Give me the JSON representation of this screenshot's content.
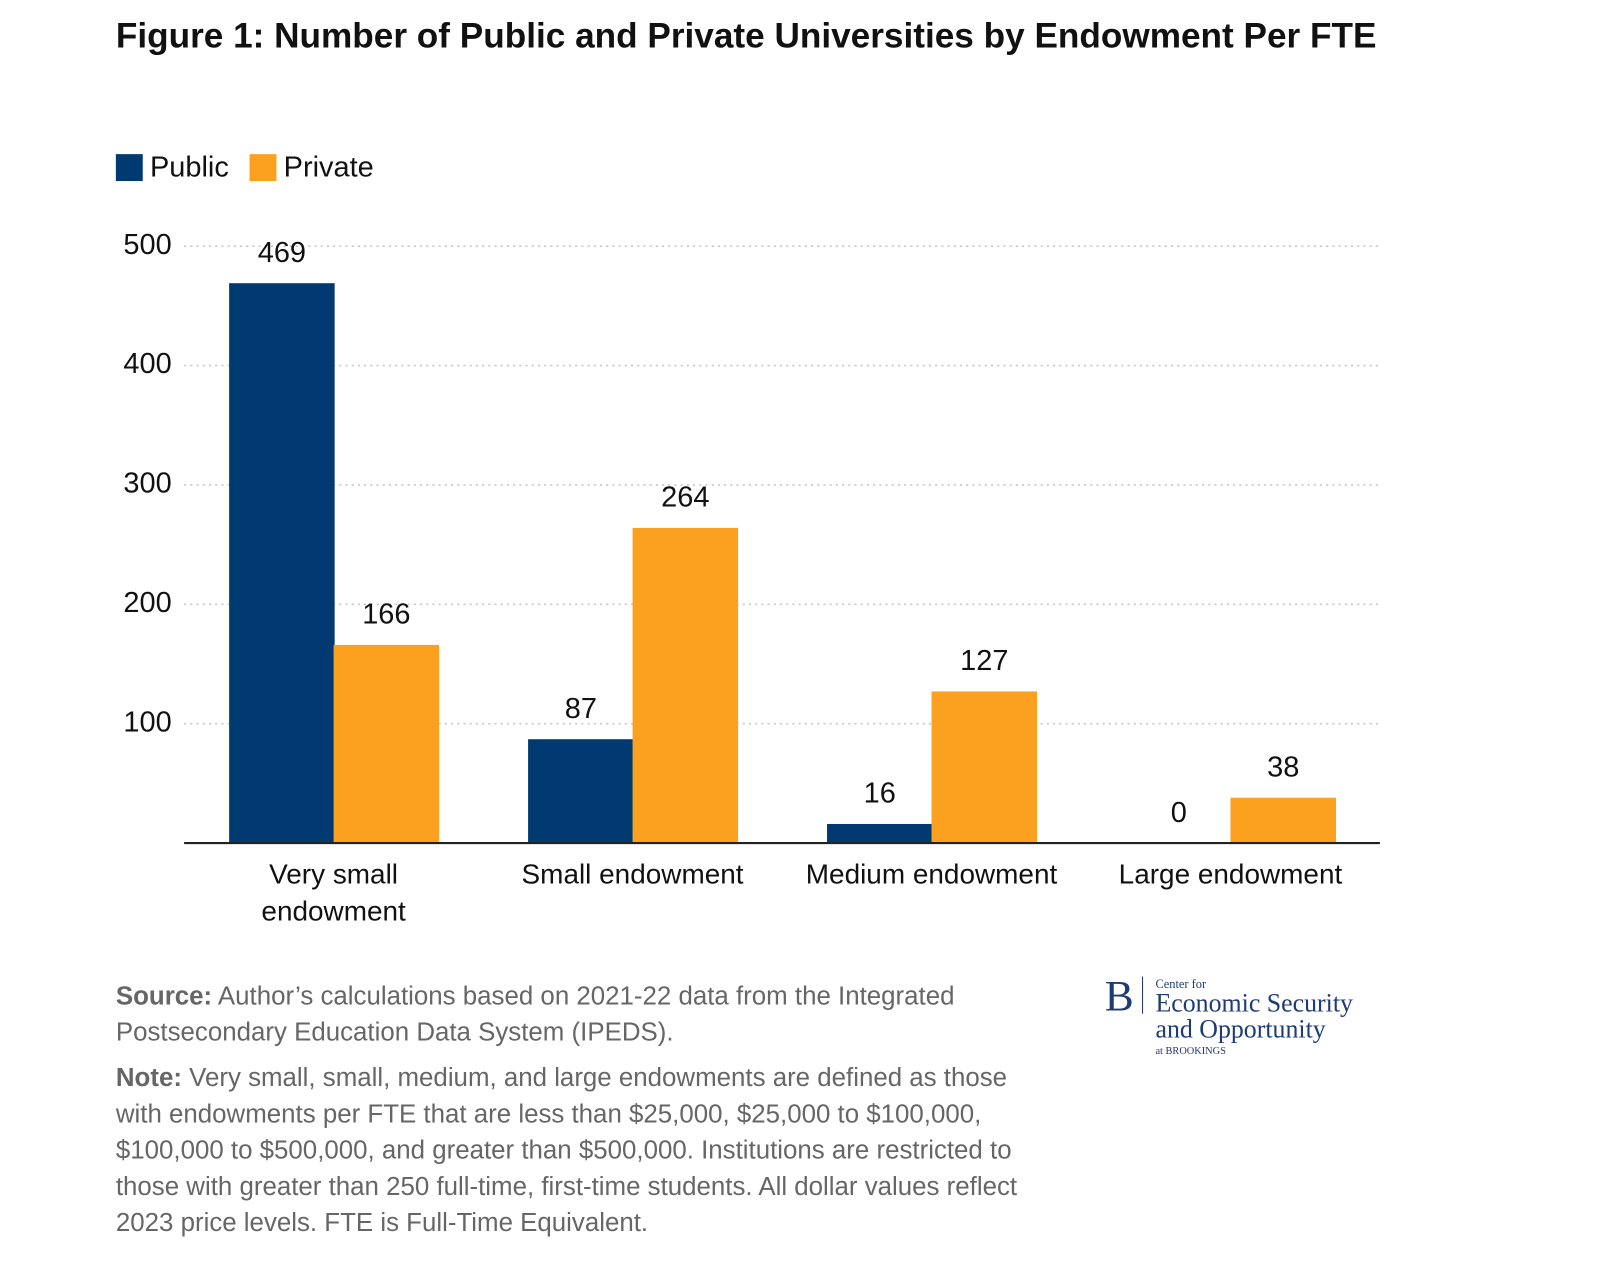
{
  "chart_data": {
    "type": "bar",
    "title": "Figure 1: Number of Public and Private Universities by Endowment Per FTE",
    "categories": [
      "Very small endowment",
      "Small endowment",
      "Medium endowment",
      "Large endowment"
    ],
    "series": [
      {
        "name": "Public",
        "color": "#003a70",
        "values": [
          469,
          87,
          16,
          0
        ]
      },
      {
        "name": "Private",
        "color": "#fca01f",
        "values": [
          166,
          264,
          127,
          38
        ]
      }
    ],
    "ylim": [
      0,
      500
    ],
    "yticks": [
      100,
      200,
      300,
      400,
      500
    ],
    "grid": true,
    "legend": "top-left"
  },
  "footer": {
    "source": {
      "label": "Source:",
      "text": "Author’s calculations based on 2021-22 data from the Integrated Postsecondary Education Data System (IPEDS)."
    },
    "note": {
      "label": "Note:",
      "text": "Very small, small, medium, and large endowments are defined as those with endowments per FTE that are less than $25,000, $25,000 to $100,000, $100,000 to $500,000, and greater than $500,000. Institutions are restricted to those with greater than 250 full-time, first-time students. All dollar values reflect 2023 price levels. FTE is Full-Time Equivalent."
    }
  },
  "logo": {
    "mark": "B",
    "line1": "Center for",
    "line2": "Economic Security",
    "line3": "and Opportunity",
    "line4": "at BROOKINGS"
  }
}
